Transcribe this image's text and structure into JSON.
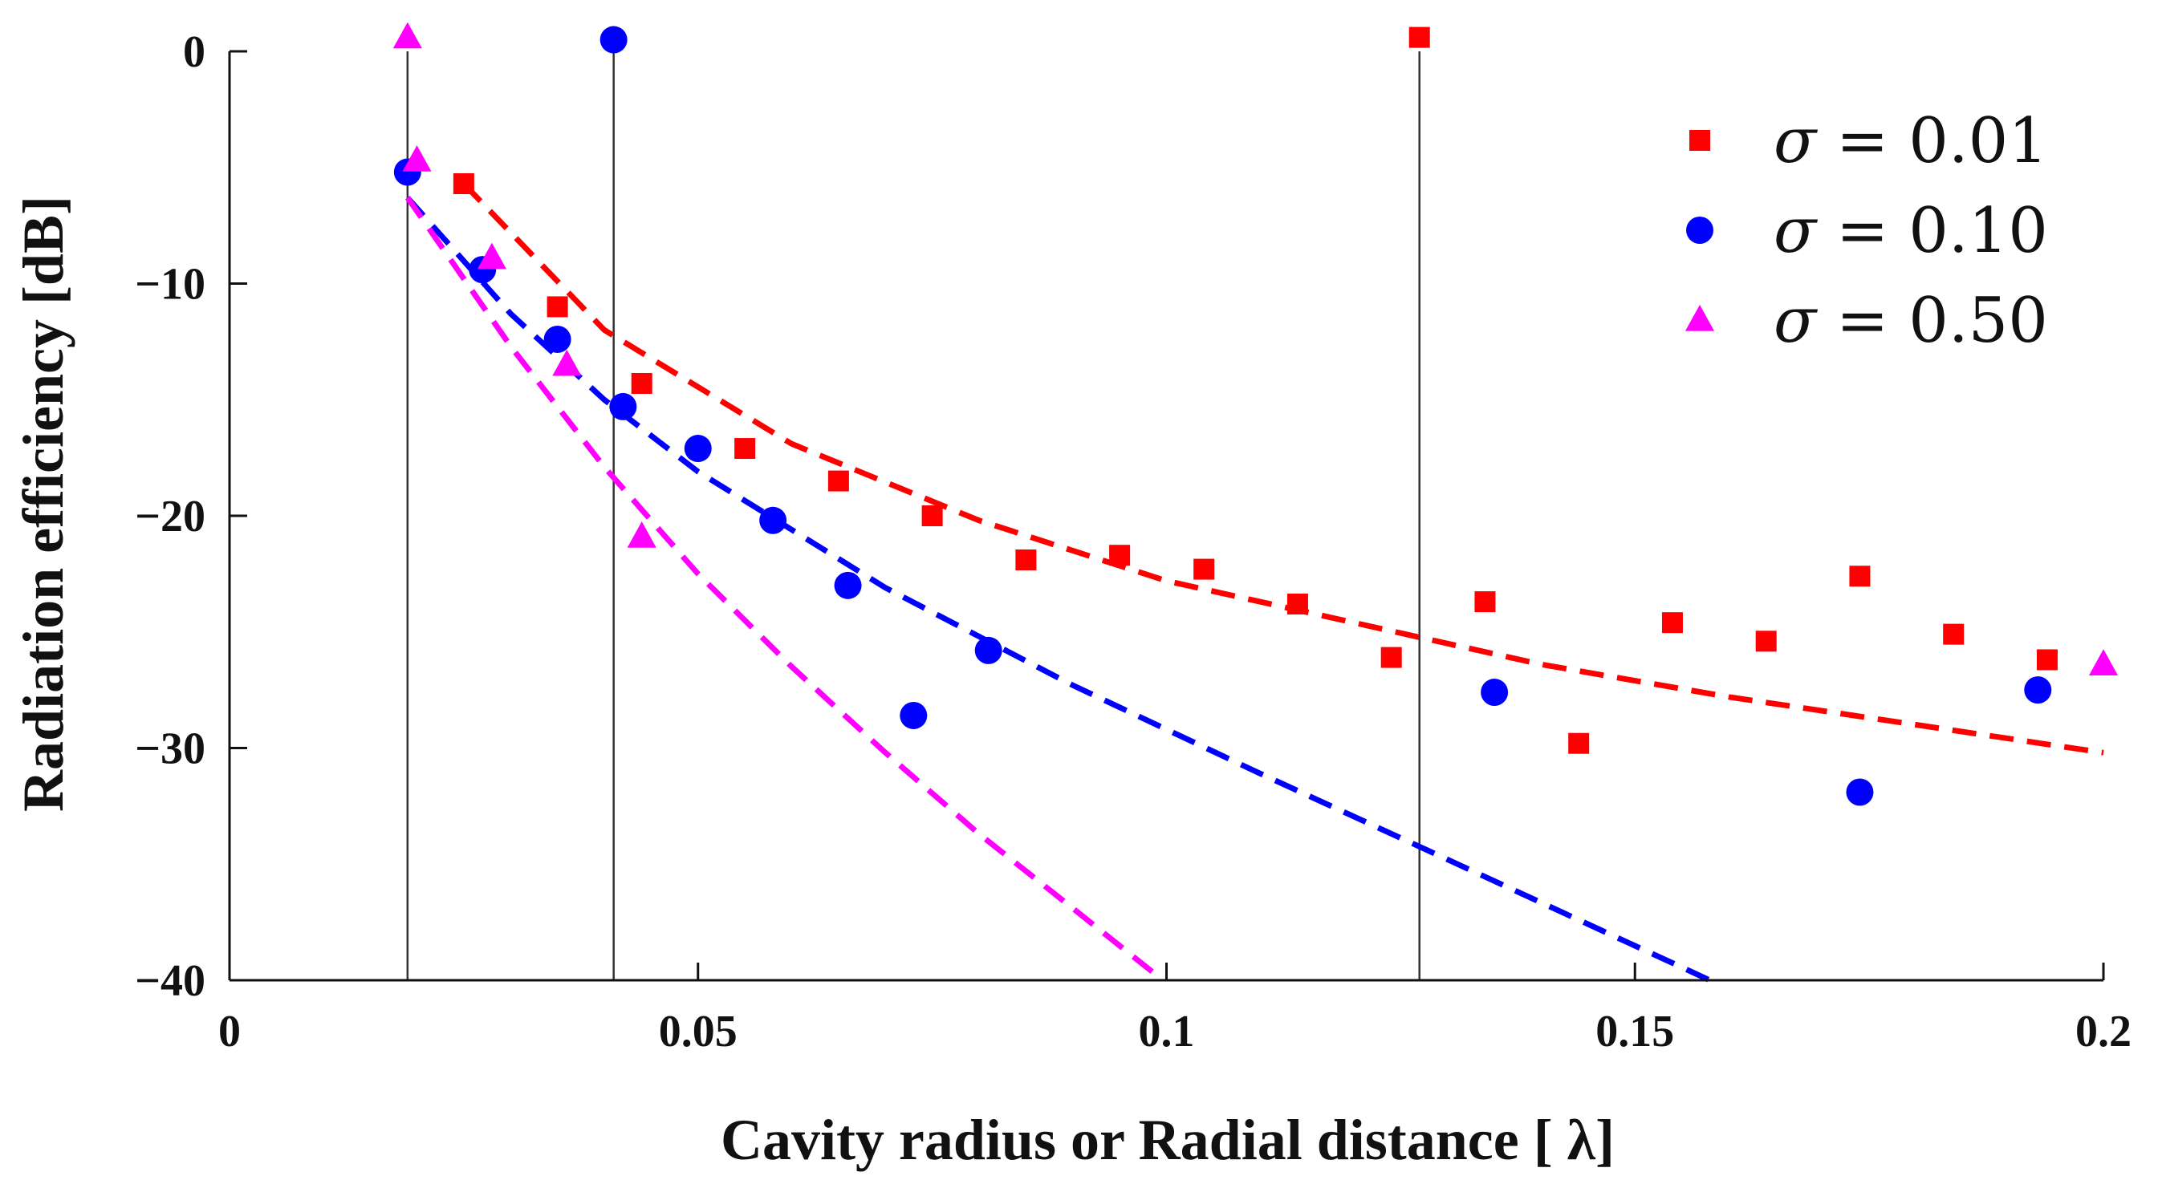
{
  "chart_data": {
    "type": "scatter",
    "xlabel": "Cavity radius or Radial distance [ λ]",
    "ylabel": "Radiation efficiency [dB]",
    "xlim": [
      0,
      0.2
    ],
    "ylim": [
      -40,
      0
    ],
    "x_ticks": [
      0,
      0.05,
      0.1,
      0.15,
      0.2
    ],
    "x_tick_labels": [
      "0",
      "0.05",
      "0.1",
      "0.15",
      "0.2"
    ],
    "y_ticks": [
      0,
      -10,
      -20,
      -30,
      -40
    ],
    "y_tick_labels": [
      "0",
      "−10",
      "−20",
      "−30",
      "−40"
    ],
    "vertical_lines": [
      0.019,
      0.041,
      0.127
    ],
    "legend_position": "top-right",
    "series": [
      {
        "name": "σ = 0.01",
        "legend_symbol": "σ",
        "legend_value": "= 0.01",
        "marker": "square",
        "color": "#ff0000",
        "points": [
          [
            0.127,
            0.6
          ],
          [
            0.025,
            -5.7
          ],
          [
            0.035,
            -11.0
          ],
          [
            0.044,
            -14.3
          ],
          [
            0.055,
            -17.1
          ],
          [
            0.065,
            -18.5
          ],
          [
            0.075,
            -20.0
          ],
          [
            0.085,
            -21.9
          ],
          [
            0.095,
            -21.7
          ],
          [
            0.104,
            -22.3
          ],
          [
            0.114,
            -23.8
          ],
          [
            0.124,
            -26.1
          ],
          [
            0.134,
            -23.7
          ],
          [
            0.144,
            -29.8
          ],
          [
            0.154,
            -24.6
          ],
          [
            0.164,
            -25.4
          ],
          [
            0.174,
            -22.6
          ],
          [
            0.184,
            -25.1
          ],
          [
            0.194,
            -26.2
          ]
        ],
        "fit": [
          [
            0.025,
            -5.7
          ],
          [
            0.04,
            -12.0
          ],
          [
            0.06,
            -16.9
          ],
          [
            0.08,
            -20.2
          ],
          [
            0.1,
            -22.8
          ],
          [
            0.12,
            -24.6
          ],
          [
            0.14,
            -26.4
          ],
          [
            0.16,
            -27.8
          ],
          [
            0.18,
            -29.0
          ],
          [
            0.2,
            -30.2
          ]
        ]
      },
      {
        "name": "σ = 0.10",
        "legend_symbol": "σ",
        "legend_value": "= 0.10",
        "marker": "circle",
        "color": "#0000ff",
        "points": [
          [
            0.041,
            0.5
          ],
          [
            0.019,
            -5.2
          ],
          [
            0.027,
            -9.4
          ],
          [
            0.035,
            -12.4
          ],
          [
            0.042,
            -15.3
          ],
          [
            0.05,
            -17.1
          ],
          [
            0.058,
            -20.2
          ],
          [
            0.066,
            -23.0
          ],
          [
            0.073,
            -28.6
          ],
          [
            0.081,
            -25.8
          ],
          [
            0.135,
            -27.6
          ],
          [
            0.174,
            -31.9
          ],
          [
            0.193,
            -27.5
          ]
        ],
        "fit": [
          [
            0.019,
            -6.3
          ],
          [
            0.03,
            -11.3
          ],
          [
            0.04,
            -15.0
          ],
          [
            0.05,
            -18.1
          ],
          [
            0.07,
            -23.1
          ],
          [
            0.09,
            -27.3
          ],
          [
            0.11,
            -31.1
          ],
          [
            0.13,
            -34.8
          ],
          [
            0.158,
            -40.0
          ]
        ]
      },
      {
        "name": "σ = 0.50",
        "legend_symbol": "σ",
        "legend_value": "= 0.50",
        "marker": "triangle",
        "color": "#ff00ff",
        "points": [
          [
            0.019,
            0.6
          ],
          [
            0.02,
            -4.7
          ],
          [
            0.028,
            -8.9
          ],
          [
            0.036,
            -13.5
          ],
          [
            0.044,
            -20.9
          ],
          [
            0.2,
            -26.4
          ]
        ],
        "fit": [
          [
            0.019,
            -6.3
          ],
          [
            0.03,
            -12.7
          ],
          [
            0.04,
            -17.9
          ],
          [
            0.05,
            -22.5
          ],
          [
            0.06,
            -26.5
          ],
          [
            0.07,
            -30.2
          ],
          [
            0.08,
            -33.7
          ],
          [
            0.09,
            -36.9
          ],
          [
            0.099,
            -39.8
          ]
        ]
      }
    ]
  }
}
